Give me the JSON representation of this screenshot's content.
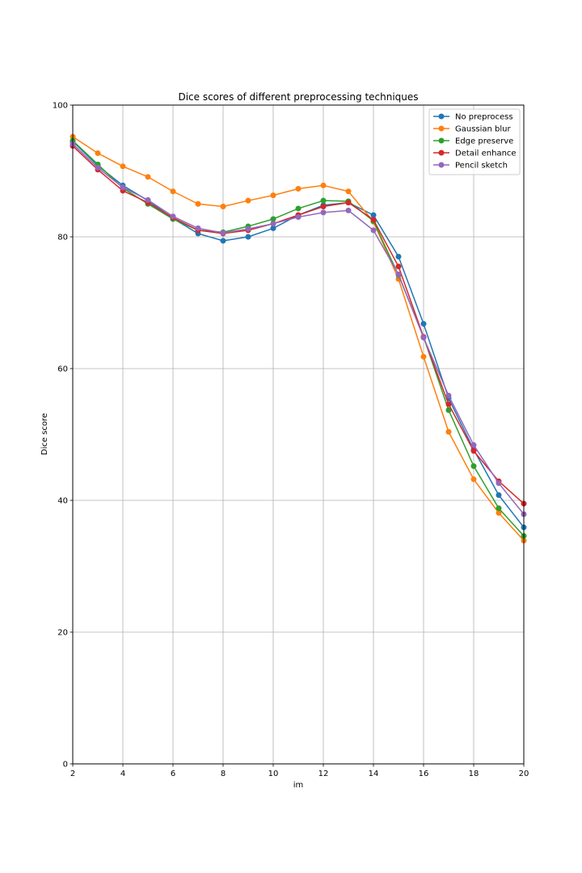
{
  "chart_data": {
    "type": "line",
    "title": "Dice scores of different preprocessing techniques",
    "xlabel": "im",
    "ylabel": "Dice score",
    "xlim": [
      2,
      20
    ],
    "ylim": [
      0,
      100
    ],
    "x_ticks": [
      2,
      4,
      6,
      8,
      10,
      12,
      14,
      16,
      18,
      20
    ],
    "y_ticks": [
      0,
      20,
      40,
      60,
      80,
      100
    ],
    "grid": true,
    "legend_position": "top-right",
    "x": [
      2,
      3,
      4,
      5,
      6,
      7,
      8,
      9,
      10,
      11,
      12,
      13,
      14,
      15,
      16,
      17,
      18,
      19,
      20
    ],
    "series": [
      {
        "name": "No preprocess",
        "color": "#1f77b4",
        "values": [
          94.5,
          90.8,
          87.8,
          85.5,
          82.8,
          80.5,
          79.4,
          80.0,
          81.3,
          83.3,
          84.8,
          85.2,
          83.3,
          77.0,
          66.8,
          55.5,
          47.7,
          40.8,
          35.9
        ]
      },
      {
        "name": "Gaussian blur",
        "color": "#ff7f0e",
        "values": [
          95.2,
          92.7,
          90.7,
          89.1,
          86.9,
          85.0,
          84.6,
          85.5,
          86.3,
          87.3,
          87.8,
          86.9,
          82.3,
          73.6,
          61.8,
          50.4,
          43.2,
          38.1,
          33.9
        ]
      },
      {
        "name": "Edge preserve",
        "color": "#2ca02c",
        "values": [
          94.6,
          91.0,
          87.4,
          85.0,
          82.7,
          81.0,
          80.7,
          81.6,
          82.7,
          84.3,
          85.5,
          85.4,
          82.4,
          74.2,
          64.8,
          53.7,
          45.2,
          38.8,
          34.6
        ]
      },
      {
        "name": "Detail enhance",
        "color": "#d62728",
        "values": [
          93.8,
          90.2,
          87.0,
          85.2,
          82.9,
          81.0,
          80.5,
          81.0,
          82.0,
          83.3,
          84.6,
          85.2,
          82.6,
          75.5,
          64.8,
          54.6,
          47.5,
          42.9,
          39.5
        ]
      },
      {
        "name": "Pencil sketch",
        "color": "#9467bd",
        "values": [
          94.1,
          90.5,
          87.5,
          85.6,
          83.1,
          81.3,
          80.6,
          81.2,
          82.0,
          83.0,
          83.7,
          84.0,
          81.0,
          74.3,
          64.7,
          55.9,
          48.4,
          42.6,
          37.9
        ]
      }
    ]
  }
}
